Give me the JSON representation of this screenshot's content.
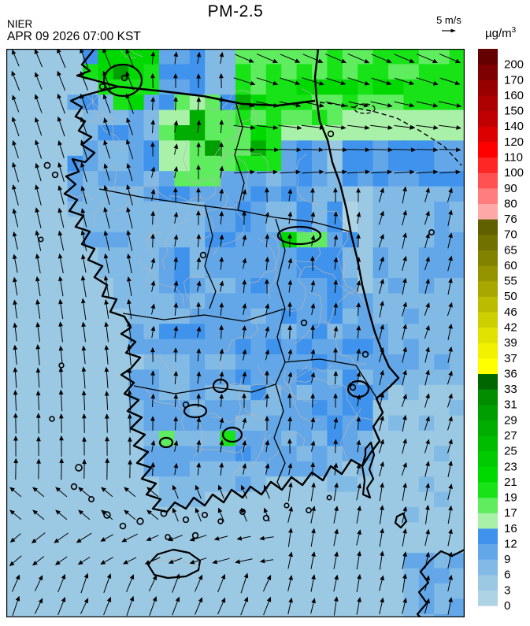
{
  "header": {
    "title": "PM-2.5",
    "agency": "NIER",
    "timestamp": "APR 09 2026 07:00 KST",
    "wind_legend_label": "5 m/s",
    "units_base": "µg/m",
    "units_exponent": "3"
  },
  "colorbar": {
    "tick_labels_top_to_bottom": [
      "200",
      "170",
      "160",
      "150",
      "140",
      "120",
      "110",
      "100",
      "90",
      "80",
      "76",
      "70",
      "65",
      "60",
      "55",
      "50",
      "46",
      "42",
      "39",
      "37",
      "36",
      "33",
      "31",
      "29",
      "27",
      "25",
      "23",
      "21",
      "19",
      "17",
      "16",
      "12",
      "9",
      "6",
      "3",
      "0"
    ],
    "scale_ascending": [
      {
        "level": 0,
        "color": "#aed3e4"
      },
      {
        "level": 3,
        "color": "#9bc8e2"
      },
      {
        "level": 6,
        "color": "#82bae6"
      },
      {
        "level": 9,
        "color": "#63a7e8"
      },
      {
        "level": 12,
        "color": "#3f93ec"
      },
      {
        "level": 16,
        "color": "#a9f1a9"
      },
      {
        "level": 17,
        "color": "#5fec5f"
      },
      {
        "level": 19,
        "color": "#17e317"
      },
      {
        "level": 21,
        "color": "#00d900"
      },
      {
        "level": 23,
        "color": "#00cb00"
      },
      {
        "level": 25,
        "color": "#00bc00"
      },
      {
        "level": 27,
        "color": "#00ad00"
      },
      {
        "level": 29,
        "color": "#009e00"
      },
      {
        "level": 31,
        "color": "#008e00"
      },
      {
        "level": 33,
        "color": "#006700"
      },
      {
        "level": 36,
        "color": "#ffff00"
      },
      {
        "level": 37,
        "color": "#f1f100"
      },
      {
        "level": 39,
        "color": "#e2e200"
      },
      {
        "level": 42,
        "color": "#cecf00"
      },
      {
        "level": 46,
        "color": "#bbbb00"
      },
      {
        "level": 50,
        "color": "#a7a700"
      },
      {
        "level": 55,
        "color": "#949400"
      },
      {
        "level": 60,
        "color": "#828200"
      },
      {
        "level": 65,
        "color": "#717100"
      },
      {
        "level": 70,
        "color": "#606000"
      },
      {
        "level": 76,
        "color": "#ffa8a8"
      },
      {
        "level": 80,
        "color": "#ff7d7d"
      },
      {
        "level": 90,
        "color": "#ff5151"
      },
      {
        "level": 100,
        "color": "#ff2626"
      },
      {
        "level": 110,
        "color": "#ff0000"
      },
      {
        "level": 120,
        "color": "#dc0000"
      },
      {
        "level": 140,
        "color": "#c00000"
      },
      {
        "level": 150,
        "color": "#ad0000"
      },
      {
        "level": 160,
        "color": "#990000"
      },
      {
        "level": 170,
        "color": "#7e0000"
      },
      {
        "level": 200,
        "color": "#650000"
      }
    ]
  },
  "map": {
    "description": "PM-2.5 surface concentration raster over the Korean peninsula with wind vector arrows",
    "sea_color": "#9bc8e2",
    "coastline_color": "#000000",
    "county_line_color": "#b5b5b5"
  }
}
